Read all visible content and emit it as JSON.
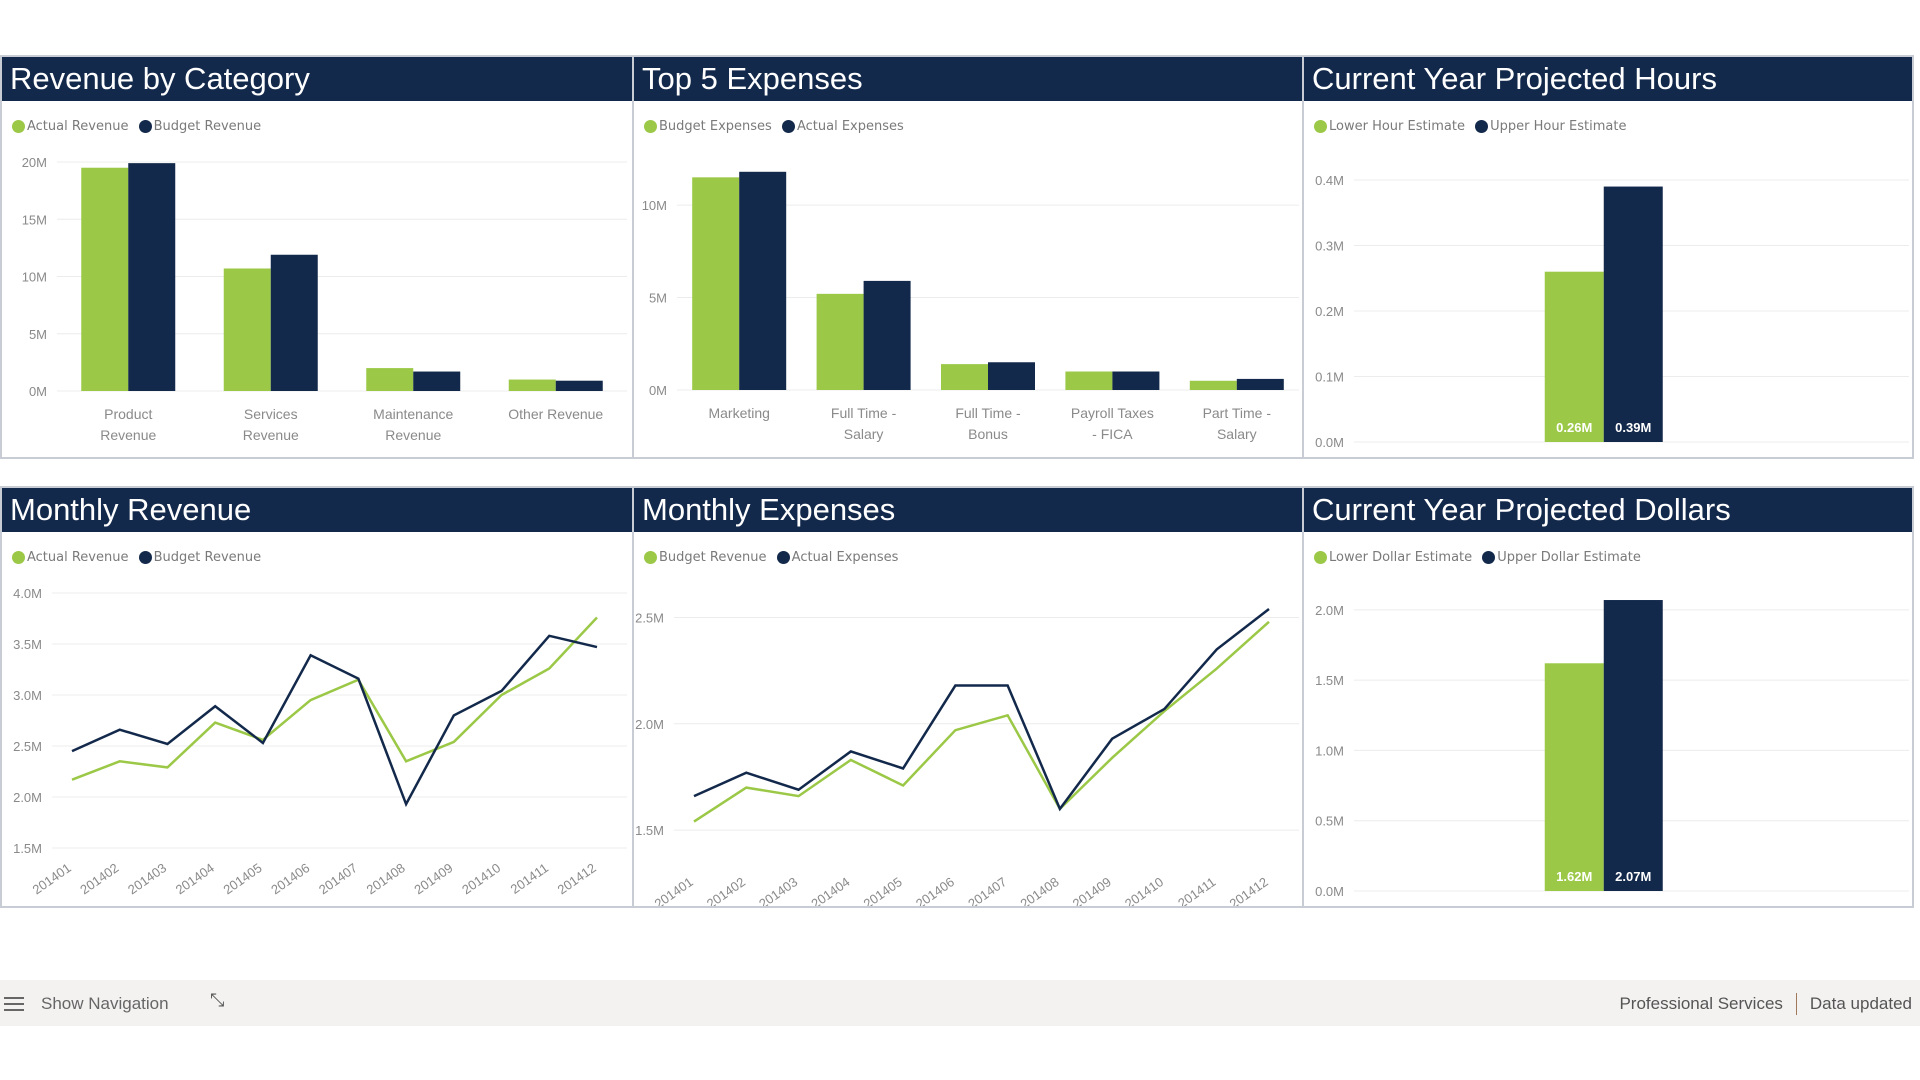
{
  "colors": {
    "green": "#9bc846",
    "navy": "#13294b",
    "title_bg": "#13294b",
    "grid": "#ececec"
  },
  "panels": {
    "revenue_by_category": {
      "title": "Revenue by Category",
      "legend": [
        "Actual Revenue",
        "Budget Revenue"
      ]
    },
    "top5_expenses": {
      "title": "Top 5 Expenses",
      "legend": [
        "Budget Expenses",
        "Actual Expenses"
      ]
    },
    "projected_hours": {
      "title": "Current Year Projected Hours",
      "legend": [
        "Lower Hour Estimate",
        "Upper Hour Estimate"
      ]
    },
    "monthly_revenue": {
      "title": "Monthly Revenue",
      "legend": [
        "Actual Revenue",
        "Budget Revenue"
      ]
    },
    "monthly_expenses": {
      "title": "Monthly Expenses",
      "legend": [
        "Budget Revenue",
        "Actual Expenses"
      ]
    },
    "projected_dollars": {
      "title": "Current Year Projected Dollars",
      "legend": [
        "Lower Dollar Estimate",
        "Upper Dollar Estimate"
      ]
    }
  },
  "chart_data": [
    {
      "id": "revenue_by_category",
      "type": "bar",
      "title": "Revenue by Category",
      "categories": [
        [
          "Product",
          "Revenue"
        ],
        [
          "Services",
          "Revenue"
        ],
        [
          "Maintenance",
          "Revenue"
        ],
        [
          "Other Revenue"
        ]
      ],
      "series": [
        {
          "name": "Actual Revenue",
          "values": [
            19.5,
            10.7,
            2.0,
            1.0
          ]
        },
        {
          "name": "Budget Revenue",
          "values": [
            19.9,
            11.9,
            1.7,
            0.9
          ]
        }
      ],
      "unit": "M",
      "yticks": [
        "0M",
        "5M",
        "10M",
        "15M",
        "20M"
      ],
      "ylim": [
        0,
        20
      ],
      "legend_position": "top-left",
      "grid": true
    },
    {
      "id": "top5_expenses",
      "type": "bar",
      "title": "Top 5 Expenses",
      "categories": [
        [
          "Marketing"
        ],
        [
          "Full Time -",
          "Salary"
        ],
        [
          "Full Time -",
          "Bonus"
        ],
        [
          "Payroll Taxes",
          "- FICA"
        ],
        [
          "Part Time -",
          "Salary"
        ]
      ],
      "series": [
        {
          "name": "Budget Expenses",
          "values": [
            11.5,
            5.2,
            1.4,
            1.0,
            0.5
          ]
        },
        {
          "name": "Actual Expenses",
          "values": [
            11.8,
            5.9,
            1.5,
            1.0,
            0.6
          ]
        }
      ],
      "unit": "M",
      "yticks": [
        "0M",
        "5M",
        "10M"
      ],
      "ylim": [
        0,
        12.6
      ],
      "ytick_values": [
        0,
        5,
        10
      ],
      "legend_position": "top-left",
      "grid": true
    },
    {
      "id": "projected_hours",
      "type": "bar",
      "title": "Current Year Projected Hours",
      "categories": [
        [
          ""
        ]
      ],
      "series": [
        {
          "name": "Lower Hour Estimate",
          "values": [
            0.26
          ],
          "label": "0.26M"
        },
        {
          "name": "Upper Hour Estimate",
          "values": [
            0.39
          ],
          "label": "0.39M"
        }
      ],
      "unit": "M",
      "yticks": [
        "0.0M",
        "0.1M",
        "0.2M",
        "0.3M",
        "0.4M"
      ],
      "ytick_values": [
        0,
        0.1,
        0.2,
        0.3,
        0.4
      ],
      "ylim": [
        0,
        0.4
      ],
      "legend_position": "top-left",
      "grid": true
    },
    {
      "id": "monthly_revenue",
      "type": "line",
      "title": "Monthly Revenue",
      "x": [
        "201401",
        "201402",
        "201403",
        "201404",
        "201405",
        "201406",
        "201407",
        "201408",
        "201409",
        "201410",
        "201411",
        "201412"
      ],
      "series": [
        {
          "name": "Actual Revenue",
          "values": [
            2.17,
            2.35,
            2.29,
            2.73,
            2.56,
            2.95,
            3.15,
            2.35,
            2.54,
            3.0,
            3.26,
            3.76
          ]
        },
        {
          "name": "Budget Revenue",
          "values": [
            2.45,
            2.66,
            2.52,
            2.89,
            2.53,
            3.39,
            3.16,
            1.93,
            2.8,
            3.04,
            3.58,
            3.47
          ]
        }
      ],
      "unit": "M",
      "yticks": [
        "1.5M",
        "2.0M",
        "2.5M",
        "3.0M",
        "3.5M",
        "4.0M"
      ],
      "ytick_values": [
        1.5,
        2.0,
        2.5,
        3.0,
        3.5,
        4.0
      ],
      "ylim": [
        1.5,
        4.0
      ],
      "legend_position": "top-left",
      "grid": true
    },
    {
      "id": "monthly_expenses",
      "type": "line",
      "title": "Monthly Expenses",
      "x": [
        "201401",
        "201402",
        "201403",
        "201404",
        "201405",
        "201406",
        "201407",
        "201408",
        "201409",
        "201410",
        "201411",
        "201412"
      ],
      "series": [
        {
          "name": "Budget Revenue",
          "values": [
            1.54,
            1.7,
            1.66,
            1.83,
            1.71,
            1.97,
            2.04,
            1.6,
            1.84,
            2.06,
            2.26,
            2.48
          ]
        },
        {
          "name": "Actual Expenses",
          "values": [
            1.66,
            1.77,
            1.69,
            1.87,
            1.79,
            2.18,
            2.18,
            1.6,
            1.93,
            2.07,
            2.35,
            2.54
          ]
        }
      ],
      "unit": "M",
      "yticks": [
        "1.5M",
        "2.0M",
        "2.5M"
      ],
      "ytick_values": [
        1.5,
        2.0,
        2.5
      ],
      "ylim": [
        1.35,
        2.62
      ],
      "legend_position": "top-left",
      "grid": true
    },
    {
      "id": "projected_dollars",
      "type": "bar",
      "title": "Current Year Projected Dollars",
      "categories": [
        [
          ""
        ]
      ],
      "series": [
        {
          "name": "Lower Dollar Estimate",
          "values": [
            1.62
          ],
          "label": "1.62M"
        },
        {
          "name": "Upper Dollar Estimate",
          "values": [
            2.07
          ],
          "label": "2.07M"
        }
      ],
      "unit": "M",
      "yticks": [
        "0.0M",
        "0.5M",
        "1.0M",
        "1.5M",
        "2.0M"
      ],
      "ytick_values": [
        0,
        0.5,
        1.0,
        1.5,
        2.0
      ],
      "ylim": [
        0,
        2.12
      ],
      "legend_position": "top-left",
      "grid": true
    }
  ],
  "footer": {
    "nav_label": "Show Navigation",
    "menu_icon": "hamburger-icon",
    "collapse_icon": "collapse-arrows-icon",
    "collapse_glyph": "⤡",
    "workspace": "Professional Services",
    "status": "Data updated"
  }
}
